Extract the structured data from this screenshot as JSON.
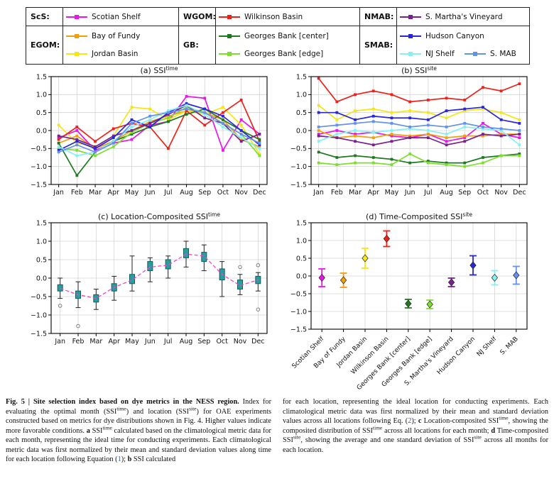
{
  "legend": {
    "columns": [
      {
        "groups": [
          {
            "label": "ScS:",
            "entries": [
              {
                "name": "Scotian Shelf",
                "color": "#e816e8"
              }
            ]
          },
          {
            "label": "EGOM:",
            "entries": [
              {
                "name": "Bay of Fundy",
                "color": "#f59d0a"
              },
              {
                "name": "Jordan Basin",
                "color": "#f5e616"
              }
            ]
          }
        ]
      },
      {
        "groups": [
          {
            "label": "WGOM:",
            "entries": [
              {
                "name": "Wilkinson Basin",
                "color": "#ee2119"
              }
            ]
          },
          {
            "label": "GB:",
            "entries": [
              {
                "name": "Georges Bank [center]",
                "color": "#1f7a1f"
              },
              {
                "name": "Georges Bank [edge]",
                "color": "#7ede2e"
              }
            ]
          }
        ]
      },
      {
        "groups": [
          {
            "label": "NMAB:",
            "entries": [
              {
                "name": "S. Martha's Vineyard",
                "color": "#7a2190"
              }
            ]
          },
          {
            "label": "SMAB:",
            "entries": [
              {
                "name": "Hudson Canyon",
                "color": "#2727d8"
              },
              {
                "name": "NJ Shelf",
                "color": "#84f0f0"
              },
              {
                "name": "S. MAB",
                "color": "#6292ea"
              }
            ]
          }
        ]
      }
    ]
  },
  "chart_data": [
    {
      "id": "chart-a",
      "type": "line",
      "title_prefix": "(a) SSI",
      "title_sup": "time",
      "ylim": [
        -1.5,
        1.5
      ],
      "ytick_step": 0.5,
      "grid": true,
      "legend_position": "top-outside",
      "categories": [
        "Jan",
        "Feb",
        "Mar",
        "Apr",
        "May",
        "Jun",
        "Jul",
        "Aug",
        "Sep",
        "Oct",
        "Nov",
        "Dec"
      ],
      "series": [
        {
          "name": "Scotian Shelf",
          "color": "#e816e8",
          "values": [
            -0.2,
            0.0,
            -0.55,
            -0.35,
            -0.25,
            0.15,
            0.25,
            0.95,
            0.9,
            -0.55,
            0.3,
            -0.1
          ]
        },
        {
          "name": "Bay of Fundy",
          "color": "#f59d0a",
          "values": [
            -0.35,
            -0.15,
            -0.5,
            -0.3,
            0.0,
            0.25,
            0.4,
            0.55,
            0.5,
            0.3,
            -0.25,
            -0.45
          ]
        },
        {
          "name": "Jordan Basin",
          "color": "#f5e616",
          "values": [
            0.15,
            -0.35,
            -0.45,
            -0.15,
            0.65,
            0.6,
            0.3,
            0.55,
            0.45,
            0.65,
            0.15,
            -0.65
          ]
        },
        {
          "name": "Wilkinson Basin",
          "color": "#ee2119",
          "values": [
            -0.25,
            0.1,
            -0.3,
            0.05,
            0.2,
            0.1,
            -0.5,
            0.55,
            0.15,
            0.5,
            0.85,
            -0.3
          ]
        },
        {
          "name": "Georges Bank [center]",
          "color": "#1f7a1f",
          "values": [
            -0.35,
            -1.25,
            -0.6,
            -0.3,
            -0.1,
            0.1,
            0.25,
            0.45,
            0.6,
            0.3,
            0.0,
            -0.25
          ]
        },
        {
          "name": "Georges Bank [edge]",
          "color": "#7ede2e",
          "values": [
            -0.5,
            -0.55,
            -0.7,
            -0.45,
            -0.05,
            0.2,
            0.35,
            0.65,
            0.5,
            0.2,
            -0.1,
            -0.7
          ]
        },
        {
          "name": "S. Martha's Vineyard",
          "color": "#7a2190",
          "values": [
            -0.15,
            -0.25,
            -0.45,
            -0.15,
            0.0,
            0.2,
            0.45,
            0.7,
            0.35,
            0.2,
            -0.3,
            -0.1
          ]
        },
        {
          "name": "Hudson Canyon",
          "color": "#2727d8",
          "values": [
            -0.55,
            -0.3,
            -0.5,
            -0.2,
            0.3,
            0.1,
            0.5,
            0.75,
            0.6,
            0.4,
            0.0,
            -0.4
          ]
        },
        {
          "name": "NJ Shelf",
          "color": "#84f0f0",
          "values": [
            -0.45,
            -0.7,
            -0.6,
            -0.3,
            0.1,
            0.3,
            0.55,
            0.7,
            0.45,
            0.1,
            -0.2,
            -0.5
          ]
        },
        {
          "name": "S. MAB",
          "color": "#6292ea",
          "values": [
            -0.6,
            -0.4,
            -0.6,
            -0.35,
            0.2,
            0.4,
            0.5,
            0.6,
            0.5,
            0.2,
            -0.1,
            -0.35
          ]
        }
      ]
    },
    {
      "id": "chart-b",
      "type": "line",
      "title_prefix": "(b) SSI",
      "title_sup": "site",
      "ylim": [
        -1.5,
        1.5
      ],
      "ytick_step": 0.5,
      "grid": true,
      "categories": [
        "Jan",
        "Feb",
        "Mar",
        "Apr",
        "May",
        "Jun",
        "Jul",
        "Aug",
        "Sep",
        "Oct",
        "Nov",
        "Dec"
      ],
      "series": [
        {
          "name": "Scotian Shelf",
          "color": "#e816e8",
          "values": [
            -0.1,
            0.0,
            -0.1,
            -0.05,
            -0.15,
            -0.2,
            -0.1,
            -0.3,
            -0.2,
            0.2,
            -0.1,
            -0.2
          ]
        },
        {
          "name": "Bay of Fundy",
          "color": "#f59d0a",
          "values": [
            0.0,
            -0.2,
            -0.15,
            -0.2,
            -0.1,
            -0.15,
            -0.1,
            -0.2,
            -0.15,
            -0.15,
            -0.1,
            -0.1
          ]
        },
        {
          "name": "Jordan Basin",
          "color": "#f5e616",
          "values": [
            0.7,
            0.3,
            0.55,
            0.6,
            0.5,
            0.55,
            0.5,
            0.35,
            0.55,
            0.6,
            0.5,
            0.3
          ]
        },
        {
          "name": "Wilkinson Basin",
          "color": "#ee2119",
          "values": [
            1.45,
            0.8,
            1.0,
            1.1,
            1.0,
            0.8,
            0.85,
            0.9,
            0.85,
            1.2,
            1.1,
            1.3
          ]
        },
        {
          "name": "Georges Bank [center]",
          "color": "#1f7a1f",
          "values": [
            -0.6,
            -0.75,
            -0.7,
            -0.75,
            -0.8,
            -0.9,
            -0.85,
            -0.9,
            -0.9,
            -0.75,
            -0.7,
            -0.65
          ]
        },
        {
          "name": "Georges Bank [edge]",
          "color": "#7ede2e",
          "values": [
            -0.9,
            -0.95,
            -0.9,
            -0.9,
            -0.95,
            -0.65,
            -0.9,
            -0.95,
            -1.0,
            -0.9,
            -0.7,
            -0.7
          ]
        },
        {
          "name": "S. Martha's Vineyard",
          "color": "#7a2190",
          "values": [
            -0.15,
            -0.2,
            -0.3,
            -0.4,
            -0.3,
            -0.2,
            -0.2,
            -0.4,
            -0.3,
            -0.1,
            -0.15,
            -0.1
          ]
        },
        {
          "name": "Hudson Canyon",
          "color": "#2727d8",
          "values": [
            0.5,
            0.5,
            0.3,
            0.4,
            0.35,
            0.35,
            0.3,
            0.55,
            0.6,
            0.65,
            0.3,
            0.2
          ]
        },
        {
          "name": "NJ Shelf",
          "color": "#84f0f0",
          "values": [
            -0.3,
            -0.1,
            0.0,
            -0.05,
            0.0,
            0.05,
            0.0,
            -0.1,
            0.1,
            0.05,
            0.0,
            -0.4
          ]
        },
        {
          "name": "S. MAB",
          "color": "#6292ea",
          "values": [
            0.1,
            0.15,
            0.2,
            0.25,
            0.2,
            0.1,
            0.15,
            0.1,
            0.2,
            0.1,
            0.05,
            0.0
          ]
        }
      ]
    },
    {
      "id": "chart-c",
      "type": "box",
      "title_prefix": "(c) Location-Composited SSI",
      "title_sup": "time",
      "ylim": [
        -1.5,
        1.5
      ],
      "ytick_step": 0.5,
      "grid": true,
      "box_fill": "#2a9d9d",
      "box_edge": "#0e5f5f",
      "whisker_color": "#222222",
      "median_line_color": "#ee44cc",
      "outlier_color": "#777777",
      "categories": [
        "Jan",
        "Feb",
        "Mar",
        "Apr",
        "May",
        "Jun",
        "Jul",
        "Aug",
        "Sep",
        "Oct",
        "Nov",
        "Dec"
      ],
      "boxes": [
        {
          "low": -0.55,
          "q1": -0.35,
          "med": -0.28,
          "q3": -0.18,
          "high": 0.0,
          "outliers": [
            -0.75
          ]
        },
        {
          "low": -0.8,
          "q1": -0.55,
          "med": -0.45,
          "q3": -0.35,
          "high": -0.1,
          "outliers": [
            -1.3
          ]
        },
        {
          "low": -0.85,
          "q1": -0.65,
          "med": -0.55,
          "q3": -0.45,
          "high": -0.3,
          "outliers": []
        },
        {
          "low": -0.6,
          "q1": -0.35,
          "med": -0.25,
          "q3": -0.15,
          "high": 0.05,
          "outliers": []
        },
        {
          "low": -0.35,
          "q1": -0.15,
          "med": -0.05,
          "q3": 0.1,
          "high": 0.6,
          "outliers": []
        },
        {
          "low": -0.1,
          "q1": 0.2,
          "med": 0.3,
          "q3": 0.45,
          "high": 0.55,
          "outliers": []
        },
        {
          "low": 0.0,
          "q1": 0.25,
          "med": 0.35,
          "q3": 0.5,
          "high": 0.6,
          "outliers": []
        },
        {
          "low": 0.3,
          "q1": 0.55,
          "med": 0.65,
          "q3": 0.8,
          "high": 1.0,
          "outliers": []
        },
        {
          "low": 0.2,
          "q1": 0.45,
          "med": 0.6,
          "q3": 0.7,
          "high": 0.9,
          "outliers": []
        },
        {
          "low": -0.5,
          "q1": -0.05,
          "med": 0.1,
          "q3": 0.25,
          "high": 0.45,
          "outliers": []
        },
        {
          "low": -0.45,
          "q1": -0.3,
          "med": -0.2,
          "q3": -0.05,
          "high": 0.1,
          "outliers": [
            0.3
          ]
        },
        {
          "low": -0.35,
          "q1": -0.15,
          "med": -0.05,
          "q3": 0.05,
          "high": 0.15,
          "outliers": [
            0.35,
            -0.85
          ]
        }
      ]
    },
    {
      "id": "chart-d",
      "type": "errorbar",
      "title_prefix": "(d) Time-Composited SSI",
      "title_sup": "site",
      "ylim": [
        -1.5,
        1.5
      ],
      "ytick_step": 0.5,
      "grid": true,
      "points": [
        {
          "label": "Scotian Shelf",
          "color": "#e816e8",
          "mean": -0.05,
          "err": 0.25
        },
        {
          "label": "Bay of Fundy",
          "color": "#f59d0a",
          "mean": -0.12,
          "err": 0.2
        },
        {
          "label": "Jordan Basin",
          "color": "#f5e616",
          "mean": 0.5,
          "err": 0.28
        },
        {
          "label": "Wilkinson Basin",
          "color": "#ee2119",
          "mean": 1.05,
          "err": 0.22
        },
        {
          "label": "Georges Bank [center]",
          "color": "#1f7a1f",
          "mean": -0.78,
          "err": 0.12
        },
        {
          "label": "Georges Bank [edge]",
          "color": "#7ede2e",
          "mean": -0.8,
          "err": 0.12
        },
        {
          "label": "S. Martha's Vineyard",
          "color": "#7a2190",
          "mean": -0.18,
          "err": 0.12
        },
        {
          "label": "Hudson Canyon",
          "color": "#2727d8",
          "mean": 0.3,
          "err": 0.27
        },
        {
          "label": "NJ Shelf",
          "color": "#84f0f0",
          "mean": -0.05,
          "err": 0.2
        },
        {
          "label": "S. MAB",
          "color": "#6292ea",
          "mean": 0.02,
          "err": 0.25
        }
      ]
    }
  ],
  "caption": {
    "left": [
      {
        "text": "Fig. 5 | Site selection index based on dye metrics in the NESS region.",
        "bold": true
      },
      {
        "text": " Index for evaluating the optimal month (SSI"
      },
      {
        "text": "time",
        "sup": true
      },
      {
        "text": ") and location (SSI"
      },
      {
        "text": "site",
        "sup": true
      },
      {
        "text": ") for OAE experiments constructed based on metrics for dye distributions shown in Fig. 4. Higher values indicate more favorable conditions. "
      },
      {
        "text": "a",
        "bold": true
      },
      {
        "text": " SSI"
      },
      {
        "text": "time",
        "sup": true
      },
      {
        "text": " calculated based on the climatological metric data for each month, representing the ideal time for conducting experiments. Each climatological metric data was first normalized by their mean and standard deviation values along time for each location following Equation ("
      },
      {
        "text": "1",
        "link": true
      },
      {
        "text": "); "
      },
      {
        "text": "b",
        "bold": true
      },
      {
        "text": " SSI calculated"
      }
    ],
    "right": [
      {
        "text": "for each location, representing the ideal location for conducting experiments. Each climatological metric data was first normalized by their mean and standard deviation values across all locations following Eq. ("
      },
      {
        "text": "2",
        "link": true
      },
      {
        "text": "); "
      },
      {
        "text": "c",
        "bold": true
      },
      {
        "text": " Location-composited SSI"
      },
      {
        "text": "time",
        "sup": true
      },
      {
        "text": ", showing the composited distribution of SSI"
      },
      {
        "text": "time",
        "sup": true
      },
      {
        "text": " across all locations for each month; "
      },
      {
        "text": "d",
        "bold": true
      },
      {
        "text": " Time-composited SSI"
      },
      {
        "text": "site",
        "sup": true
      },
      {
        "text": ", showing the average and one standard deviation of SSI"
      },
      {
        "text": "site",
        "sup": true
      },
      {
        "text": " across all months for each location."
      }
    ]
  }
}
